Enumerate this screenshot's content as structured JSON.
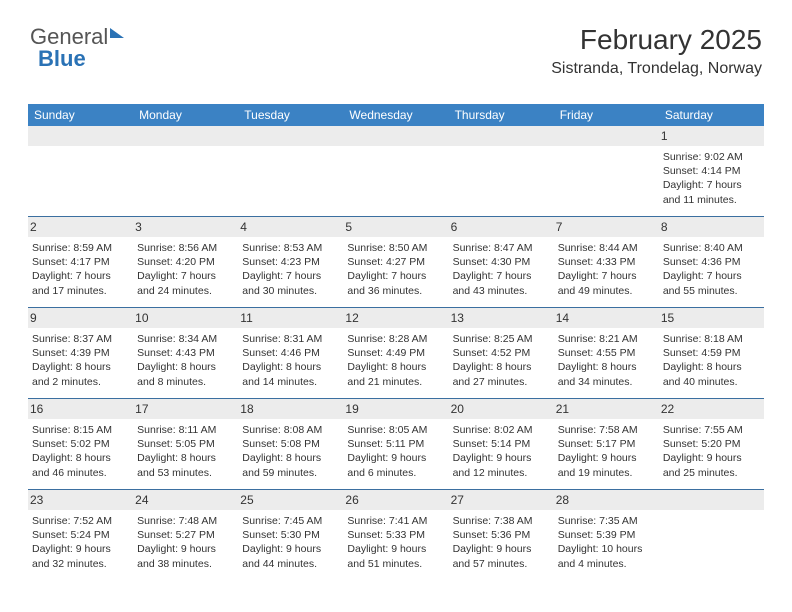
{
  "logo": {
    "part1": "General",
    "part2": "Blue"
  },
  "title": "February 2025",
  "location": "Sistranda, Trondelag, Norway",
  "day_header_bg": "#3b82c4",
  "day_header_fg": "#ffffff",
  "rule_color": "#3b6fa0",
  "daynum_bg": "#ececec",
  "days_of_week": [
    "Sunday",
    "Monday",
    "Tuesday",
    "Wednesday",
    "Thursday",
    "Friday",
    "Saturday"
  ],
  "weeks": [
    [
      null,
      null,
      null,
      null,
      null,
      null,
      {
        "n": "1",
        "sr": "9:02 AM",
        "ss": "4:14 PM",
        "dl": "7 hours and 11 minutes."
      }
    ],
    [
      {
        "n": "2",
        "sr": "8:59 AM",
        "ss": "4:17 PM",
        "dl": "7 hours and 17 minutes."
      },
      {
        "n": "3",
        "sr": "8:56 AM",
        "ss": "4:20 PM",
        "dl": "7 hours and 24 minutes."
      },
      {
        "n": "4",
        "sr": "8:53 AM",
        "ss": "4:23 PM",
        "dl": "7 hours and 30 minutes."
      },
      {
        "n": "5",
        "sr": "8:50 AM",
        "ss": "4:27 PM",
        "dl": "7 hours and 36 minutes."
      },
      {
        "n": "6",
        "sr": "8:47 AM",
        "ss": "4:30 PM",
        "dl": "7 hours and 43 minutes."
      },
      {
        "n": "7",
        "sr": "8:44 AM",
        "ss": "4:33 PM",
        "dl": "7 hours and 49 minutes."
      },
      {
        "n": "8",
        "sr": "8:40 AM",
        "ss": "4:36 PM",
        "dl": "7 hours and 55 minutes."
      }
    ],
    [
      {
        "n": "9",
        "sr": "8:37 AM",
        "ss": "4:39 PM",
        "dl": "8 hours and 2 minutes."
      },
      {
        "n": "10",
        "sr": "8:34 AM",
        "ss": "4:43 PM",
        "dl": "8 hours and 8 minutes."
      },
      {
        "n": "11",
        "sr": "8:31 AM",
        "ss": "4:46 PM",
        "dl": "8 hours and 14 minutes."
      },
      {
        "n": "12",
        "sr": "8:28 AM",
        "ss": "4:49 PM",
        "dl": "8 hours and 21 minutes."
      },
      {
        "n": "13",
        "sr": "8:25 AM",
        "ss": "4:52 PM",
        "dl": "8 hours and 27 minutes."
      },
      {
        "n": "14",
        "sr": "8:21 AM",
        "ss": "4:55 PM",
        "dl": "8 hours and 34 minutes."
      },
      {
        "n": "15",
        "sr": "8:18 AM",
        "ss": "4:59 PM",
        "dl": "8 hours and 40 minutes."
      }
    ],
    [
      {
        "n": "16",
        "sr": "8:15 AM",
        "ss": "5:02 PM",
        "dl": "8 hours and 46 minutes."
      },
      {
        "n": "17",
        "sr": "8:11 AM",
        "ss": "5:05 PM",
        "dl": "8 hours and 53 minutes."
      },
      {
        "n": "18",
        "sr": "8:08 AM",
        "ss": "5:08 PM",
        "dl": "8 hours and 59 minutes."
      },
      {
        "n": "19",
        "sr": "8:05 AM",
        "ss": "5:11 PM",
        "dl": "9 hours and 6 minutes."
      },
      {
        "n": "20",
        "sr": "8:02 AM",
        "ss": "5:14 PM",
        "dl": "9 hours and 12 minutes."
      },
      {
        "n": "21",
        "sr": "7:58 AM",
        "ss": "5:17 PM",
        "dl": "9 hours and 19 minutes."
      },
      {
        "n": "22",
        "sr": "7:55 AM",
        "ss": "5:20 PM",
        "dl": "9 hours and 25 minutes."
      }
    ],
    [
      {
        "n": "23",
        "sr": "7:52 AM",
        "ss": "5:24 PM",
        "dl": "9 hours and 32 minutes."
      },
      {
        "n": "24",
        "sr": "7:48 AM",
        "ss": "5:27 PM",
        "dl": "9 hours and 38 minutes."
      },
      {
        "n": "25",
        "sr": "7:45 AM",
        "ss": "5:30 PM",
        "dl": "9 hours and 44 minutes."
      },
      {
        "n": "26",
        "sr": "7:41 AM",
        "ss": "5:33 PM",
        "dl": "9 hours and 51 minutes."
      },
      {
        "n": "27",
        "sr": "7:38 AM",
        "ss": "5:36 PM",
        "dl": "9 hours and 57 minutes."
      },
      {
        "n": "28",
        "sr": "7:35 AM",
        "ss": "5:39 PM",
        "dl": "10 hours and 4 minutes."
      },
      null
    ]
  ],
  "labels": {
    "sunrise": "Sunrise: ",
    "sunset": "Sunset: ",
    "daylight": "Daylight: "
  }
}
